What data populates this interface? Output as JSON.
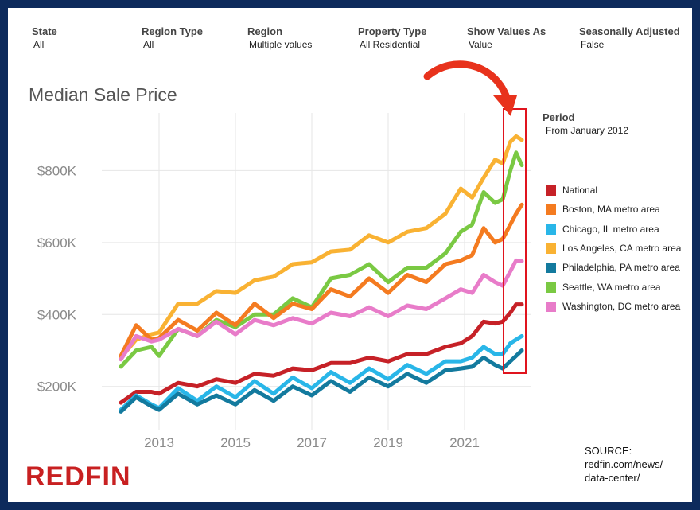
{
  "filters": [
    {
      "label": "State",
      "value": "All"
    },
    {
      "label": "Region Type",
      "value": "All"
    },
    {
      "label": "Region",
      "value": "Multiple values"
    },
    {
      "label": "Property Type",
      "value": "All Residential"
    },
    {
      "label": "Show Values As",
      "value": "Value"
    },
    {
      "label": "Seasonally Adjusted",
      "value": "False"
    }
  ],
  "chart_title": "Median Sale Price",
  "period": {
    "title": "Period",
    "value": "From January 2012"
  },
  "source_text": [
    "SOURCE:",
    "redfin.com/news/",
    "data-center/"
  ],
  "logo_text": "REDFIN",
  "colors": {
    "frame": "#0d2a5c",
    "highlight_box": "#e0141e",
    "arrow": "#e8321c",
    "logo": "#c82021"
  },
  "chart_data": {
    "type": "line",
    "title": "Median Sale Price",
    "xlabel": "",
    "ylabel": "",
    "x_ticks": [
      "2013",
      "2015",
      "2017",
      "2019",
      "2021"
    ],
    "y_ticks": [
      "$200K",
      "$400K",
      "$600K",
      "$800K"
    ],
    "y_tick_values": [
      200000,
      400000,
      600000,
      800000
    ],
    "ylim": [
      80000,
      960000
    ],
    "xlim": [
      2011.5,
      2022.75
    ],
    "grid": true,
    "legend_position": "right",
    "highlight": "last months of 2022 (boxed in red with arrow)",
    "series": [
      {
        "name": "Los Angeles, CA metro area",
        "color": "#f9b233",
        "points": [
          [
            2012.0,
            280000
          ],
          [
            2012.4,
            330000
          ],
          [
            2012.8,
            345000
          ],
          [
            2013.0,
            350000
          ],
          [
            2013.5,
            430000
          ],
          [
            2014.0,
            430000
          ],
          [
            2014.5,
            465000
          ],
          [
            2015.0,
            460000
          ],
          [
            2015.5,
            495000
          ],
          [
            2016.0,
            505000
          ],
          [
            2016.5,
            540000
          ],
          [
            2017.0,
            545000
          ],
          [
            2017.5,
            575000
          ],
          [
            2018.0,
            580000
          ],
          [
            2018.5,
            620000
          ],
          [
            2019.0,
            600000
          ],
          [
            2019.5,
            630000
          ],
          [
            2020.0,
            640000
          ],
          [
            2020.5,
            680000
          ],
          [
            2020.9,
            750000
          ],
          [
            2021.2,
            725000
          ],
          [
            2021.5,
            780000
          ],
          [
            2021.8,
            830000
          ],
          [
            2022.0,
            820000
          ],
          [
            2022.2,
            880000
          ],
          [
            2022.35,
            895000
          ],
          [
            2022.5,
            885000
          ]
        ]
      },
      {
        "name": "Seattle, WA metro area",
        "color": "#7ac943",
        "points": [
          [
            2012.0,
            255000
          ],
          [
            2012.4,
            300000
          ],
          [
            2012.8,
            310000
          ],
          [
            2013.0,
            285000
          ],
          [
            2013.5,
            360000
          ],
          [
            2014.0,
            340000
          ],
          [
            2014.5,
            385000
          ],
          [
            2015.0,
            365000
          ],
          [
            2015.5,
            400000
          ],
          [
            2016.0,
            400000
          ],
          [
            2016.5,
            445000
          ],
          [
            2017.0,
            420000
          ],
          [
            2017.5,
            500000
          ],
          [
            2018.0,
            510000
          ],
          [
            2018.5,
            540000
          ],
          [
            2019.0,
            490000
          ],
          [
            2019.5,
            530000
          ],
          [
            2020.0,
            530000
          ],
          [
            2020.5,
            570000
          ],
          [
            2020.9,
            630000
          ],
          [
            2021.2,
            650000
          ],
          [
            2021.5,
            740000
          ],
          [
            2021.8,
            710000
          ],
          [
            2022.0,
            720000
          ],
          [
            2022.2,
            800000
          ],
          [
            2022.35,
            850000
          ],
          [
            2022.5,
            815000
          ]
        ]
      },
      {
        "name": "Boston, MA metro area",
        "color": "#f47b20",
        "points": [
          [
            2012.0,
            285000
          ],
          [
            2012.4,
            370000
          ],
          [
            2012.8,
            330000
          ],
          [
            2013.0,
            335000
          ],
          [
            2013.5,
            385000
          ],
          [
            2014.0,
            355000
          ],
          [
            2014.5,
            405000
          ],
          [
            2015.0,
            370000
          ],
          [
            2015.5,
            430000
          ],
          [
            2016.0,
            390000
          ],
          [
            2016.5,
            430000
          ],
          [
            2017.0,
            415000
          ],
          [
            2017.5,
            470000
          ],
          [
            2018.0,
            450000
          ],
          [
            2018.5,
            500000
          ],
          [
            2019.0,
            460000
          ],
          [
            2019.5,
            510000
          ],
          [
            2020.0,
            490000
          ],
          [
            2020.5,
            540000
          ],
          [
            2020.9,
            550000
          ],
          [
            2021.2,
            565000
          ],
          [
            2021.5,
            640000
          ],
          [
            2021.8,
            600000
          ],
          [
            2022.0,
            610000
          ],
          [
            2022.2,
            650000
          ],
          [
            2022.35,
            680000
          ],
          [
            2022.5,
            705000
          ]
        ]
      },
      {
        "name": "Washington, DC metro area",
        "color": "#e87cc9",
        "points": [
          [
            2012.0,
            275000
          ],
          [
            2012.4,
            340000
          ],
          [
            2012.8,
            325000
          ],
          [
            2013.0,
            330000
          ],
          [
            2013.5,
            360000
          ],
          [
            2014.0,
            340000
          ],
          [
            2014.5,
            380000
          ],
          [
            2015.0,
            345000
          ],
          [
            2015.5,
            385000
          ],
          [
            2016.0,
            370000
          ],
          [
            2016.5,
            390000
          ],
          [
            2017.0,
            375000
          ],
          [
            2017.5,
            405000
          ],
          [
            2018.0,
            395000
          ],
          [
            2018.5,
            420000
          ],
          [
            2019.0,
            395000
          ],
          [
            2019.5,
            425000
          ],
          [
            2020.0,
            415000
          ],
          [
            2020.5,
            445000
          ],
          [
            2020.9,
            470000
          ],
          [
            2021.2,
            460000
          ],
          [
            2021.5,
            510000
          ],
          [
            2021.8,
            490000
          ],
          [
            2022.0,
            480000
          ],
          [
            2022.2,
            520000
          ],
          [
            2022.35,
            550000
          ],
          [
            2022.5,
            548000
          ]
        ]
      },
      {
        "name": "National",
        "color": "#c62127",
        "points": [
          [
            2012.0,
            155000
          ],
          [
            2012.4,
            185000
          ],
          [
            2012.8,
            185000
          ],
          [
            2013.0,
            180000
          ],
          [
            2013.5,
            210000
          ],
          [
            2014.0,
            200000
          ],
          [
            2014.5,
            220000
          ],
          [
            2015.0,
            210000
          ],
          [
            2015.5,
            235000
          ],
          [
            2016.0,
            230000
          ],
          [
            2016.5,
            250000
          ],
          [
            2017.0,
            245000
          ],
          [
            2017.5,
            265000
          ],
          [
            2018.0,
            265000
          ],
          [
            2018.5,
            280000
          ],
          [
            2019.0,
            270000
          ],
          [
            2019.5,
            290000
          ],
          [
            2020.0,
            290000
          ],
          [
            2020.5,
            310000
          ],
          [
            2020.9,
            320000
          ],
          [
            2021.2,
            340000
          ],
          [
            2021.5,
            380000
          ],
          [
            2021.8,
            375000
          ],
          [
            2022.0,
            380000
          ],
          [
            2022.2,
            405000
          ],
          [
            2022.35,
            428000
          ],
          [
            2022.5,
            428000
          ]
        ]
      },
      {
        "name": "Chicago, IL metro area",
        "color": "#29b6e8",
        "points": [
          [
            2012.0,
            135000
          ],
          [
            2012.4,
            175000
          ],
          [
            2012.8,
            150000
          ],
          [
            2013.0,
            140000
          ],
          [
            2013.5,
            195000
          ],
          [
            2014.0,
            160000
          ],
          [
            2014.5,
            200000
          ],
          [
            2015.0,
            170000
          ],
          [
            2015.5,
            215000
          ],
          [
            2016.0,
            180000
          ],
          [
            2016.5,
            225000
          ],
          [
            2017.0,
            195000
          ],
          [
            2017.5,
            240000
          ],
          [
            2018.0,
            210000
          ],
          [
            2018.5,
            250000
          ],
          [
            2019.0,
            220000
          ],
          [
            2019.5,
            260000
          ],
          [
            2020.0,
            235000
          ],
          [
            2020.5,
            270000
          ],
          [
            2020.9,
            270000
          ],
          [
            2021.2,
            280000
          ],
          [
            2021.5,
            310000
          ],
          [
            2021.8,
            290000
          ],
          [
            2022.0,
            290000
          ],
          [
            2022.2,
            320000
          ],
          [
            2022.35,
            330000
          ],
          [
            2022.5,
            340000
          ]
        ]
      },
      {
        "name": "Philadelphia, PA metro area",
        "color": "#137a9e",
        "points": [
          [
            2012.0,
            130000
          ],
          [
            2012.4,
            170000
          ],
          [
            2012.8,
            145000
          ],
          [
            2013.0,
            135000
          ],
          [
            2013.5,
            180000
          ],
          [
            2014.0,
            150000
          ],
          [
            2014.5,
            175000
          ],
          [
            2015.0,
            150000
          ],
          [
            2015.5,
            190000
          ],
          [
            2016.0,
            160000
          ],
          [
            2016.5,
            200000
          ],
          [
            2017.0,
            175000
          ],
          [
            2017.5,
            215000
          ],
          [
            2018.0,
            185000
          ],
          [
            2018.5,
            225000
          ],
          [
            2019.0,
            200000
          ],
          [
            2019.5,
            235000
          ],
          [
            2020.0,
            210000
          ],
          [
            2020.5,
            245000
          ],
          [
            2020.9,
            250000
          ],
          [
            2021.2,
            255000
          ],
          [
            2021.5,
            280000
          ],
          [
            2021.8,
            260000
          ],
          [
            2022.0,
            250000
          ],
          [
            2022.2,
            270000
          ],
          [
            2022.35,
            285000
          ],
          [
            2022.5,
            300000
          ]
        ]
      }
    ],
    "legend_order": [
      "National",
      "Boston, MA metro area",
      "Chicago, IL metro area",
      "Los Angeles, CA metro area",
      "Philadelphia, PA metro area",
      "Seattle, WA metro area",
      "Washington, DC metro area"
    ]
  }
}
